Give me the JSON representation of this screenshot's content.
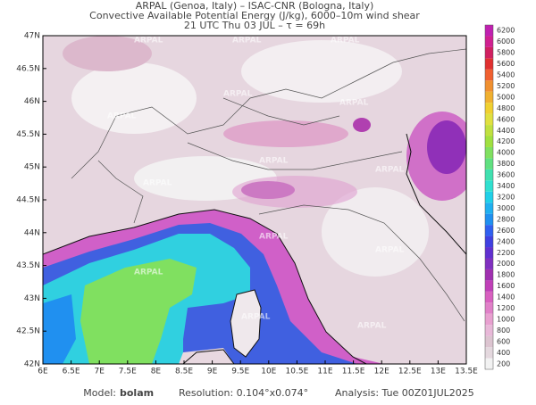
{
  "header": {
    "line1": "ARPAL (Genoa, Italy)  –  ISAC-CNR (Bologna, Italy)",
    "line2": "Convective Available Potential Energy (J/kg), 6000–10m wind shear",
    "line3": "21 UTC Thu 03 JUL  –  τ = 69h"
  },
  "map": {
    "watermark": "ARPAL",
    "lat_labels": [
      "47N",
      "46.5N",
      "46N",
      "45.5N",
      "45N",
      "44.5N",
      "44N",
      "43.5N",
      "43N",
      "42.5N",
      "42N"
    ],
    "lon_labels": [
      "6E",
      "6.5E",
      "7E",
      "7.5E",
      "8E",
      "8.5E",
      "9E",
      "9.5E",
      "10E",
      "10.5E",
      "11E",
      "11.5E",
      "12E",
      "12.5E",
      "13E",
      "13.5E"
    ]
  },
  "colorbar": {
    "levels": [
      200,
      400,
      600,
      800,
      1000,
      1200,
      1400,
      1600,
      1800,
      2000,
      2200,
      2400,
      2600,
      2800,
      3000,
      3200,
      3400,
      3600,
      3800,
      4000,
      4200,
      4400,
      4600,
      4800,
      5000,
      5200,
      5400,
      5600,
      5800,
      6000,
      6200
    ],
    "colors": [
      "#f2f2f2",
      "#e4d8de",
      "#dcc4d0",
      "#e8b8d8",
      "#e8a0d0",
      "#e080c8",
      "#d860c0",
      "#c040b8",
      "#a030b0",
      "#8030c0",
      "#6030d0",
      "#4040e0",
      "#3060f0",
      "#2090f0",
      "#20b0f0",
      "#20d0e8",
      "#30e0d0",
      "#40e0b0",
      "#60e080",
      "#80e060",
      "#a0e040",
      "#c0e040",
      "#e0e040",
      "#f0d030",
      "#f0b030",
      "#f09030",
      "#f06030",
      "#e03030",
      "#d02060",
      "#d02090",
      "#c020b0"
    ]
  },
  "footer": {
    "model_label": "Model:",
    "model": "bolam",
    "resolution": "Resolution: 0.104°x0.074°",
    "analysis": "Analysis: Tue 00Z01JUL2025"
  }
}
